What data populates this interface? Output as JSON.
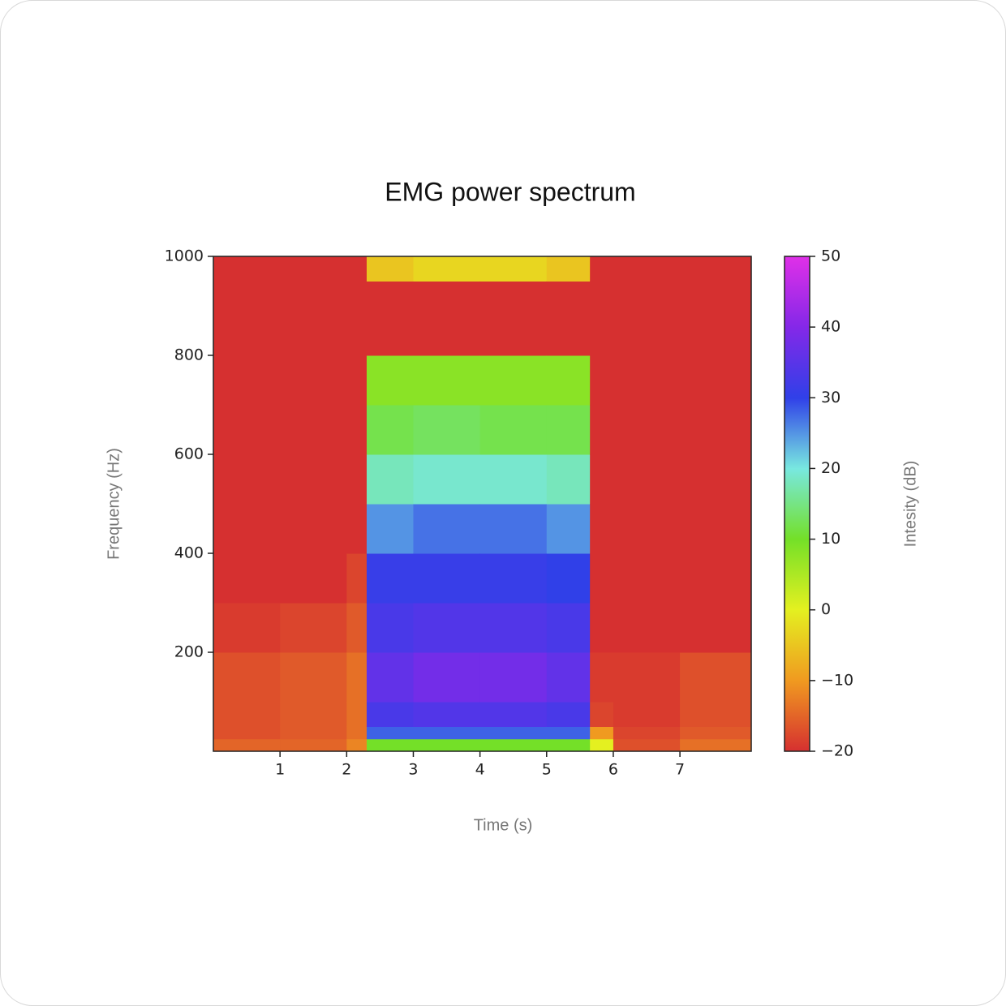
{
  "chart_data": {
    "type": "heatmap",
    "title": "EMG power spectrum",
    "x_label": "Time (s)",
    "y_label": "Frequency (Hz)",
    "colorbar_label": "Intesity (dB)",
    "x": [
      0,
      1,
      2,
      2.3,
      3,
      4,
      5,
      5.65,
      6,
      7,
      8.07
    ],
    "y": [
      0,
      25,
      50,
      100,
      200,
      300,
      400,
      500,
      600,
      700,
      800,
      950,
      1000
    ],
    "z": [
      [
        -15,
        -17,
        -17,
        -17,
        -19,
        -20,
        -20,
        -20,
        -20,
        -20,
        -20,
        -20
      ],
      [
        -15,
        -16,
        -16,
        -16,
        -18,
        -20,
        -20,
        -20,
        -20,
        -20,
        -20,
        -20
      ],
      [
        -12,
        -14,
        -14,
        -14,
        -16,
        -18,
        -20,
        -20,
        -20,
        -20,
        -20,
        -20
      ],
      [
        10,
        28,
        33,
        36,
        33,
        31,
        25,
        18,
        12,
        8,
        -20,
        -5
      ],
      [
        10,
        28,
        34,
        38,
        34,
        31,
        27,
        19,
        13,
        8,
        -20,
        -3
      ],
      [
        10,
        28,
        34,
        38,
        34,
        31,
        27,
        19,
        12,
        8,
        -20,
        -3
      ],
      [
        10,
        28,
        33,
        36,
        33,
        30,
        25,
        18,
        12,
        8,
        -20,
        -5
      ],
      [
        0,
        -10,
        -18,
        -19,
        -20,
        -20,
        -20,
        -20,
        -20,
        -20,
        -20,
        -20
      ],
      [
        -17,
        -18,
        -19,
        -19,
        -20,
        -20,
        -20,
        -20,
        -20,
        -20,
        -20,
        -20
      ],
      [
        -14,
        -16,
        -17,
        -17,
        -20,
        -20,
        -20,
        -20,
        -20,
        -20,
        -20,
        -20
      ]
    ],
    "xlim": [
      0,
      8.07
    ],
    "ylim": [
      0,
      1000
    ],
    "zlim": [
      -20,
      50
    ],
    "xticks": [
      1,
      2,
      3,
      4,
      5,
      6,
      7
    ],
    "yticks": [
      200,
      400,
      600,
      800,
      1000
    ],
    "zticks": [
      {
        "value": -20,
        "label": "−20"
      },
      {
        "value": -10,
        "label": "−10"
      },
      0,
      10,
      20,
      30,
      40,
      50
    ],
    "colormap": [
      "#d63030",
      "#f09a20",
      "#e4f020",
      "#74e028",
      "#78e8e0",
      "#3040e8",
      "#8428e8",
      "#e030e8"
    ]
  }
}
